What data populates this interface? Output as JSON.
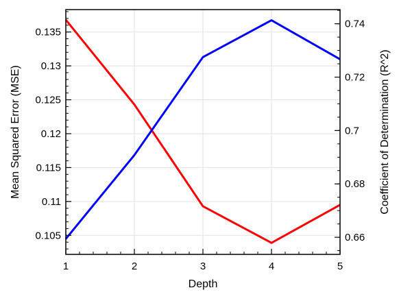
{
  "chart_data": {
    "type": "line",
    "xlabel": "Depth",
    "ylabel_left": "Mean Squared Error (MSE)",
    "ylabel_right": "Coefficient of Determination (R^2)",
    "x": [
      1,
      2,
      3,
      4,
      5
    ],
    "xlim": [
      1,
      5
    ],
    "ylim_left": [
      0.1022,
      0.1383
    ],
    "ylim_right": [
      0.6536,
      0.7453
    ],
    "grid": true,
    "series": [
      {
        "axis": "left",
        "color": "#ff0000",
        "values": [
          0.1368,
          0.1243,
          0.1093,
          0.1039,
          0.1095
        ]
      },
      {
        "axis": "right",
        "color": "#0000ff",
        "values": [
          0.6594,
          0.6908,
          0.7275,
          0.7413,
          0.7267
        ]
      }
    ],
    "x_ticks": [
      {
        "value": 1,
        "label": "1"
      },
      {
        "value": 2,
        "label": "2"
      },
      {
        "value": 3,
        "label": "3"
      },
      {
        "value": 4,
        "label": "4"
      },
      {
        "value": 5,
        "label": "5"
      }
    ],
    "left_ticks": [
      {
        "value": 0.105,
        "label": "0.105"
      },
      {
        "value": 0.11,
        "label": "0.11"
      },
      {
        "value": 0.115,
        "label": "0.115"
      },
      {
        "value": 0.12,
        "label": "0.12"
      },
      {
        "value": 0.125,
        "label": "0.125"
      },
      {
        "value": 0.13,
        "label": "0.13"
      },
      {
        "value": 0.135,
        "label": "0.135"
      }
    ],
    "right_ticks": [
      {
        "value": 0.66,
        "label": "0.66"
      },
      {
        "value": 0.68,
        "label": "0.68"
      },
      {
        "value": 0.7,
        "label": "0.7"
      },
      {
        "value": 0.72,
        "label": "0.72"
      },
      {
        "value": 0.74,
        "label": "0.74"
      }
    ]
  }
}
